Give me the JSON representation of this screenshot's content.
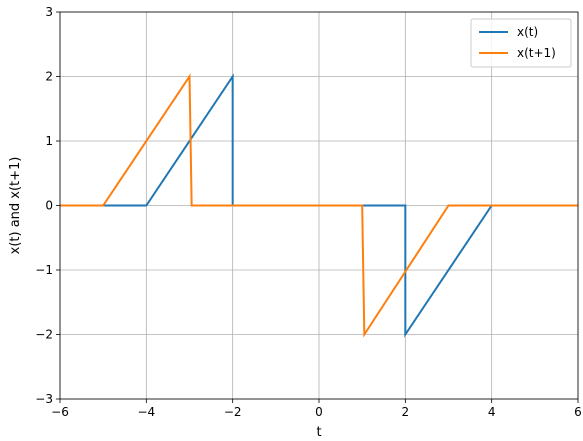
{
  "chart_data": {
    "type": "line",
    "xlabel": "t",
    "ylabel": "x(t) and x(t+1)",
    "xlim": [
      -6,
      6
    ],
    "ylim": [
      -3,
      3
    ],
    "x_ticks": [
      -6,
      -4,
      -2,
      0,
      2,
      4,
      6
    ],
    "y_ticks": [
      -3,
      -2,
      -1,
      0,
      1,
      2,
      3
    ],
    "x_tick_labels": [
      "−6",
      "−4",
      "−2",
      "0",
      "2",
      "4",
      "6"
    ],
    "y_tick_labels": [
      "−3",
      "−2",
      "−1",
      "0",
      "1",
      "2",
      "3"
    ],
    "grid": true,
    "legend_position": "top-right",
    "series": [
      {
        "name": "x(t)",
        "color": "#1f77b4",
        "x": [
          -6,
          -4,
          -2,
          -2,
          2,
          2,
          4,
          6
        ],
        "y": [
          0,
          0,
          2,
          0,
          0,
          -2,
          0,
          0
        ]
      },
      {
        "name": "x(t+1)",
        "color": "#ff7f0e",
        "x": [
          -6,
          -5,
          -3,
          -2.95,
          1,
          1.05,
          3,
          6
        ],
        "y": [
          0,
          0,
          2,
          0,
          0,
          -2,
          0,
          0
        ]
      }
    ]
  }
}
